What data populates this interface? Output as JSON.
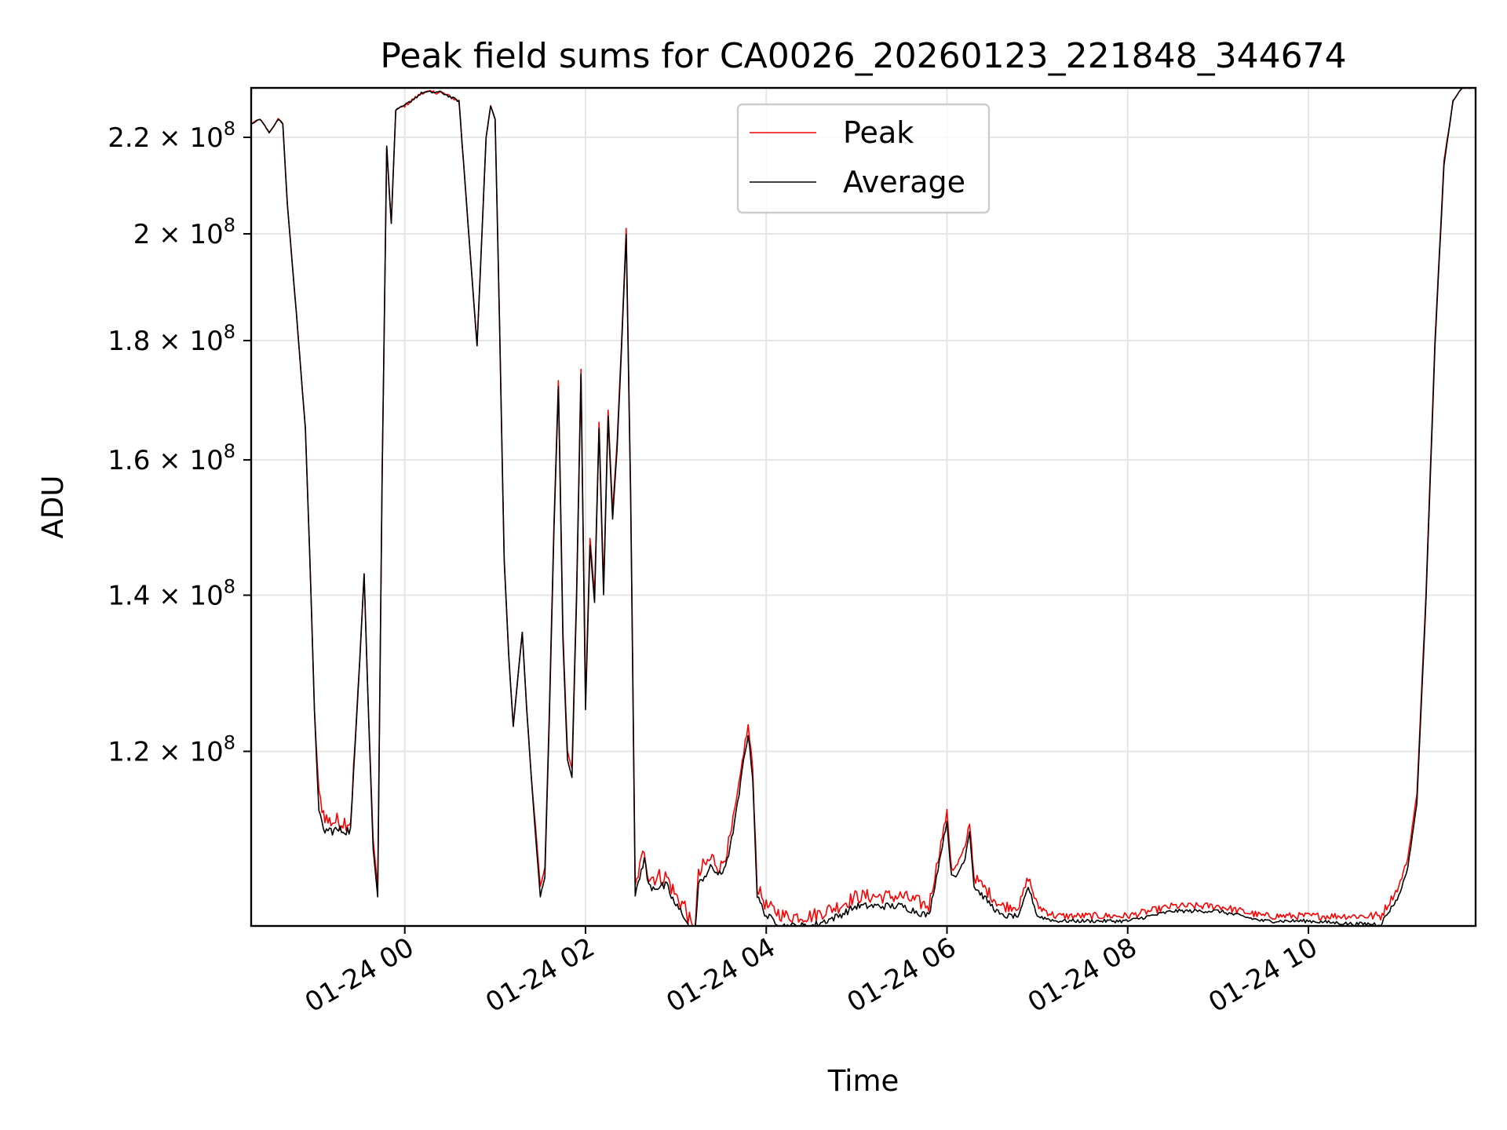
{
  "chart_data": {
    "type": "line",
    "title": "Peak field sums for CA0026_20260123_221848_344674",
    "xlabel": "Time",
    "ylabel": "ADU",
    "yscale": "log",
    "xlim": [
      -1.7,
      11.85
    ],
    "ylim": [
      101000000,
      231000000
    ],
    "grid": true,
    "legend": {
      "placement": "top-center",
      "entries": [
        "Peak",
        "Average"
      ]
    },
    "x_ticks": [
      {
        "value": 0,
        "label": "01-24 00"
      },
      {
        "value": 2,
        "label": "01-24 02"
      },
      {
        "value": 4,
        "label": "01-24 04"
      },
      {
        "value": 6,
        "label": "01-24 06"
      },
      {
        "value": 8,
        "label": "01-24 08"
      },
      {
        "value": 10,
        "label": "01-24 10"
      }
    ],
    "y_ticks": [
      {
        "value": 120000000,
        "mantissa": "1.2",
        "exp": "8"
      },
      {
        "value": 140000000,
        "mantissa": "1.4",
        "exp": "8"
      },
      {
        "value": 160000000,
        "mantissa": "1.6",
        "exp": "8"
      },
      {
        "value": 180000000,
        "mantissa": "1.8",
        "exp": "8"
      },
      {
        "value": 200000000,
        "mantissa": "2",
        "exp": "8"
      },
      {
        "value": 220000000,
        "mantissa": "2.2",
        "exp": "8"
      }
    ],
    "series": [
      {
        "name": "Peak",
        "color": "#ff0000",
        "x": [
          -1.7,
          -1.6,
          -1.5,
          -1.4,
          -1.35,
          -1.3,
          -1.2,
          -1.1,
          -1.05,
          -1.0,
          -0.95,
          -0.9,
          -0.85,
          -0.8,
          -0.7,
          -0.6,
          -0.5,
          -0.45,
          -0.4,
          -0.35,
          -0.3,
          -0.25,
          -0.2,
          -0.15,
          -0.1,
          0.0,
          0.2,
          0.4,
          0.6,
          0.8,
          0.9,
          0.95,
          1.0,
          1.05,
          1.1,
          1.15,
          1.2,
          1.3,
          1.35,
          1.4,
          1.45,
          1.5,
          1.55,
          1.6,
          1.65,
          1.7,
          1.75,
          1.8,
          1.85,
          1.9,
          1.95,
          2.0,
          2.05,
          2.1,
          2.15,
          2.2,
          2.25,
          2.3,
          2.35,
          2.4,
          2.45,
          2.5,
          2.55,
          2.6,
          2.65,
          2.7,
          2.8,
          2.9,
          3.0,
          3.1,
          3.2,
          3.25,
          3.3,
          3.4,
          3.5,
          3.6,
          3.7,
          3.75,
          3.8,
          3.85,
          3.9,
          4.0,
          4.2,
          4.5,
          4.8,
          5.0,
          5.2,
          5.5,
          5.8,
          6.0,
          6.05,
          6.1,
          6.2,
          6.25,
          6.3,
          6.4,
          6.5,
          6.6,
          6.8,
          6.9,
          7.0,
          7.2,
          7.5,
          8.0,
          8.5,
          9.0,
          9.5,
          10.0,
          10.5,
          10.8,
          11.0,
          11.1,
          11.2,
          11.3,
          11.4,
          11.5,
          11.6,
          11.7,
          11.85
        ],
        "y": [
          223000000.0,
          224000000.0,
          221000000.0,
          224000000.0,
          223000000.0,
          206000000.0,
          185000000.0,
          165000000.0,
          145000000.0,
          125000000.0,
          115000000.0,
          113000000.0,
          112000000.0,
          112000000.0,
          112000000.0,
          112000000.0,
          131000000.0,
          143000000.0,
          124000000.0,
          110000000.0,
          105000000.0,
          158000000.0,
          218000000.0,
          202000000.0,
          226000000.0,
          227000000.0,
          230000000.0,
          230000000.0,
          228000000.0,
          179000000.0,
          220000000.0,
          227000000.0,
          224000000.0,
          182000000.0,
          145000000.0,
          132000000.0,
          123000000.0,
          135000000.0,
          125000000.0,
          117000000.0,
          111000000.0,
          105000000.0,
          107000000.0,
          125000000.0,
          150000000.0,
          173000000.0,
          135000000.0,
          120000000.0,
          118000000.0,
          140000000.0,
          175000000.0,
          126000000.0,
          148000000.0,
          140000000.0,
          166000000.0,
          141000000.0,
          168000000.0,
          152000000.0,
          163000000.0,
          180000000.0,
          201000000.0,
          155000000.0,
          105000000.0,
          107000000.0,
          109000000.0,
          106000000.0,
          106000000.0,
          106000000.0,
          104000000.0,
          103000000.0,
          100000000.0,
          106000000.0,
          107000000.0,
          108000000.0,
          107000000.0,
          110000000.0,
          116000000.0,
          120000000.0,
          123000000.0,
          118000000.0,
          105000000.0,
          103000000.0,
          102000000.0,
          102000000.0,
          103000000.0,
          104000000.0,
          104000000.0,
          104000000.0,
          103000000.0,
          113000000.0,
          107000000.0,
          107000000.0,
          109000000.0,
          112000000.0,
          106000000.0,
          105000000.0,
          104000000.0,
          103000000.0,
          103000000.0,
          106000000.0,
          103000000.0,
          102000000.0,
          102000000.0,
          102000000.0,
          103000000.0,
          103000000.0,
          102000000.0,
          102000000.0,
          102000000.0,
          102000000.0,
          105000000.0,
          108000000.0,
          115000000.0,
          140000000.0,
          180000000.0,
          215000000.0,
          228000000.0,
          231000000.0,
          231000000.0
        ],
        "jitter": [
          0.1,
          0.1,
          0.1,
          0.1,
          0.1,
          0.1,
          0.1,
          0.1,
          0.1,
          0.1,
          1.0,
          1.5,
          1.5,
          1.5,
          1.5,
          1.5,
          0.1,
          0.1,
          0.1,
          0.1,
          0.1,
          0.1,
          0.1,
          0.1,
          0.1,
          0.3,
          0.3,
          0.3,
          0.3,
          0.1,
          0.1,
          0.1,
          0.1,
          0.1,
          0.1,
          0.1,
          0.1,
          0.1,
          0.1,
          0.1,
          0.1,
          0.1,
          0.1,
          0.1,
          0.1,
          0.1,
          0.1,
          0.1,
          0.1,
          0.1,
          0.1,
          0.1,
          0.1,
          0.1,
          0.1,
          0.1,
          0.1,
          0.1,
          0.1,
          0.1,
          0.1,
          0.1,
          0.5,
          1.2,
          1.2,
          1.5,
          1.5,
          1.5,
          1.5,
          1.5,
          1.5,
          1.5,
          1.5,
          1.5,
          1.5,
          1.2,
          0.8,
          0.8,
          0.8,
          0.8,
          1.0,
          1.2,
          1.2,
          1.2,
          1.2,
          1.2,
          1.2,
          1.2,
          1.2,
          0.5,
          0.8,
          0.8,
          0.6,
          0.6,
          0.8,
          1.0,
          1.0,
          1.0,
          0.8,
          0.8,
          0.8,
          0.6,
          0.6,
          0.6,
          0.6,
          0.6,
          0.6,
          0.6,
          0.6,
          0.8,
          0.5,
          0.3,
          0.1,
          0.1,
          0.1,
          0.1,
          0.1,
          0.1,
          0.1
        ]
      },
      {
        "name": "Average",
        "color": "#000000",
        "x": [
          -1.7,
          -1.6,
          -1.5,
          -1.4,
          -1.35,
          -1.3,
          -1.2,
          -1.1,
          -1.05,
          -1.0,
          -0.95,
          -0.9,
          -0.85,
          -0.8,
          -0.7,
          -0.6,
          -0.5,
          -0.45,
          -0.4,
          -0.35,
          -0.3,
          -0.25,
          -0.2,
          -0.15,
          -0.1,
          0.0,
          0.2,
          0.4,
          0.6,
          0.8,
          0.9,
          0.95,
          1.0,
          1.05,
          1.1,
          1.15,
          1.2,
          1.3,
          1.35,
          1.4,
          1.45,
          1.5,
          1.55,
          1.6,
          1.65,
          1.7,
          1.75,
          1.8,
          1.85,
          1.9,
          1.95,
          2.0,
          2.05,
          2.1,
          2.15,
          2.2,
          2.25,
          2.3,
          2.35,
          2.4,
          2.45,
          2.5,
          2.55,
          2.6,
          2.65,
          2.7,
          2.8,
          2.9,
          3.0,
          3.1,
          3.2,
          3.25,
          3.3,
          3.4,
          3.5,
          3.6,
          3.7,
          3.75,
          3.8,
          3.85,
          3.9,
          4.0,
          4.2,
          4.5,
          4.8,
          5.0,
          5.2,
          5.5,
          5.8,
          6.0,
          6.05,
          6.1,
          6.2,
          6.25,
          6.3,
          6.4,
          6.5,
          6.6,
          6.8,
          6.9,
          7.0,
          7.2,
          7.5,
          8.0,
          8.5,
          9.0,
          9.5,
          10.0,
          10.5,
          10.8,
          11.0,
          11.1,
          11.2,
          11.3,
          11.4,
          11.5,
          11.6,
          11.7,
          11.85
        ],
        "y": [
          223000000.0,
          224000000.0,
          221000000.0,
          224000000.0,
          223000000.0,
          206000000.0,
          185000000.0,
          165000000.0,
          145000000.0,
          125000000.0,
          113000000.0,
          111000000.0,
          111000000.0,
          111000000.0,
          111000000.0,
          111000000.0,
          131000000.0,
          143000000.0,
          124000000.0,
          109000000.0,
          104000000.0,
          158000000.0,
          218000000.0,
          202000000.0,
          226000000.0,
          227000000.0,
          230000000.0,
          230000000.0,
          228000000.0,
          179000000.0,
          220000000.0,
          227000000.0,
          224000000.0,
          182000000.0,
          145000000.0,
          132000000.0,
          123000000.0,
          135000000.0,
          125000000.0,
          117000000.0,
          110000000.0,
          104000000.0,
          106000000.0,
          124000000.0,
          149000000.0,
          172000000.0,
          134000000.0,
          119000000.0,
          117000000.0,
          139000000.0,
          174000000.0,
          125000000.0,
          147000000.0,
          139000000.0,
          165000000.0,
          140000000.0,
          167000000.0,
          151000000.0,
          162000000.0,
          179000000.0,
          200000000.0,
          154000000.0,
          104000000.0,
          106000000.0,
          108000000.0,
          105000000.0,
          105000000.0,
          105000000.0,
          103000000.0,
          102000000.0,
          99000000.0,
          105000000.0,
          106000000.0,
          107000000.0,
          106000000.0,
          109000000.0,
          115000000.0,
          119000000.0,
          122000000.0,
          117000000.0,
          104000000.0,
          102000000.0,
          101000000.0,
          101000000.0,
          102000000.0,
          103000000.0,
          103000000.0,
          103000000.0,
          102000000.0,
          112000000.0,
          106000000.0,
          106000000.0,
          108000000.0,
          111000000.0,
          105000000.0,
          104000000.0,
          103000000.0,
          102000000.0,
          102000000.0,
          105000000.0,
          102000000.0,
          101500000.0,
          101500000.0,
          101500000.0,
          102500000.0,
          102500000.0,
          101500000.0,
          101500000.0,
          101200000.0,
          101200000.0,
          104000000.0,
          107000000.0,
          114000000.0,
          139000000.0,
          179000000.0,
          214000000.0,
          228000000.0,
          231000000.0,
          231000000.0
        ],
        "jitter": [
          0.1,
          0.1,
          0.1,
          0.1,
          0.1,
          0.1,
          0.1,
          0.1,
          0.1,
          0.1,
          0.5,
          0.8,
          0.8,
          0.8,
          0.8,
          0.8,
          0.1,
          0.1,
          0.1,
          0.1,
          0.1,
          0.1,
          0.1,
          0.1,
          0.1,
          0.2,
          0.2,
          0.2,
          0.2,
          0.1,
          0.1,
          0.1,
          0.1,
          0.1,
          0.1,
          0.1,
          0.1,
          0.1,
          0.1,
          0.1,
          0.1,
          0.1,
          0.1,
          0.1,
          0.1,
          0.1,
          0.1,
          0.1,
          0.1,
          0.1,
          0.1,
          0.1,
          0.1,
          0.1,
          0.1,
          0.1,
          0.1,
          0.1,
          0.1,
          0.1,
          0.1,
          0.1,
          0.3,
          0.7,
          0.7,
          0.8,
          0.8,
          0.8,
          0.8,
          0.8,
          0.8,
          0.8,
          0.8,
          0.8,
          0.8,
          0.6,
          0.4,
          0.4,
          0.4,
          0.4,
          0.5,
          0.6,
          0.6,
          0.6,
          0.6,
          0.6,
          0.6,
          0.6,
          0.6,
          0.3,
          0.4,
          0.4,
          0.3,
          0.3,
          0.4,
          0.5,
          0.5,
          0.5,
          0.4,
          0.4,
          0.4,
          0.3,
          0.3,
          0.3,
          0.3,
          0.3,
          0.3,
          0.3,
          0.3,
          0.4,
          0.3,
          0.2,
          0.1,
          0.1,
          0.1,
          0.1,
          0.1,
          0.1,
          0.1
        ]
      }
    ]
  }
}
